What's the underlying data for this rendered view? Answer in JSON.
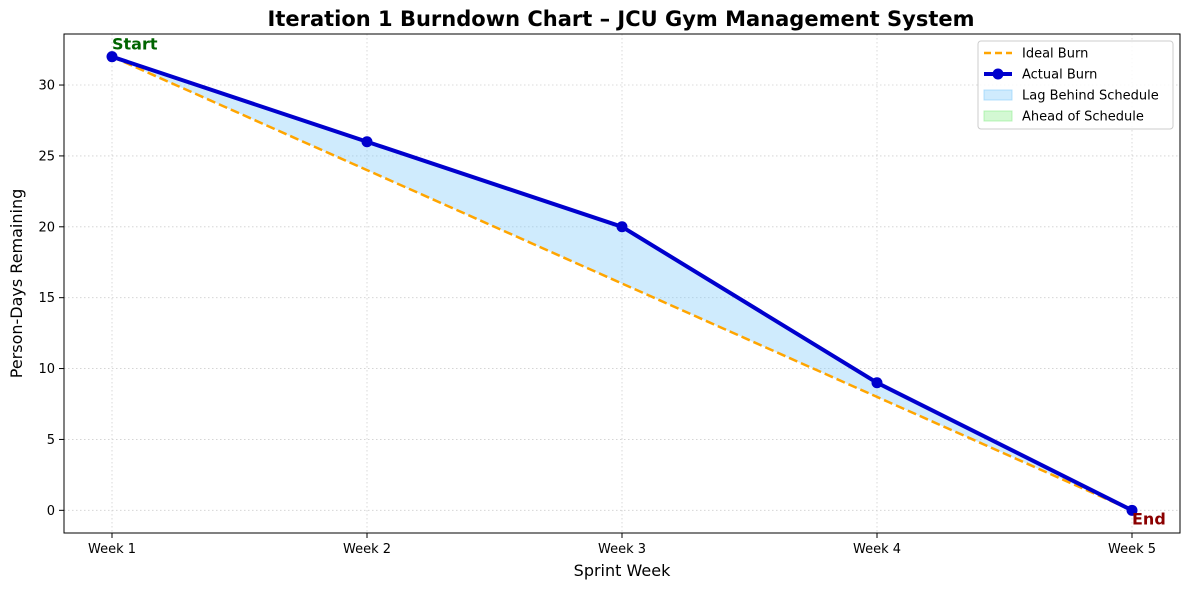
{
  "chart_data": {
    "type": "line",
    "title": "Iteration 1 Burndown Chart – JCU Gym Management System",
    "xlabel": "Sprint Week",
    "ylabel": "Person-Days Remaining",
    "categories": [
      "Week 1",
      "Week 2",
      "Week 3",
      "Week 4",
      "Week 5"
    ],
    "ylim": [
      -1.6,
      33.6
    ],
    "yticks": [
      0,
      5,
      10,
      15,
      20,
      25,
      30
    ],
    "grid": true,
    "legend_position": "top-right",
    "series": [
      {
        "name": "Ideal Burn",
        "values": [
          32,
          24,
          16,
          8,
          0
        ],
        "color": "#ffa500",
        "style": "dashed"
      },
      {
        "name": "Actual Burn",
        "values": [
          32,
          26,
          20,
          9,
          0
        ],
        "color": "#0000cd",
        "style": "solid-with-markers"
      }
    ],
    "fills": [
      {
        "name": "Lag Behind Schedule",
        "color": "#87cefa"
      },
      {
        "name": "Ahead of Schedule",
        "color": "#90ee90"
      }
    ],
    "annotations": [
      {
        "text": "Start",
        "category": "Week 1",
        "value": 32,
        "color": "#006400"
      },
      {
        "text": "End",
        "category": "Week 5",
        "value": 0,
        "color": "#8b0000"
      }
    ]
  }
}
